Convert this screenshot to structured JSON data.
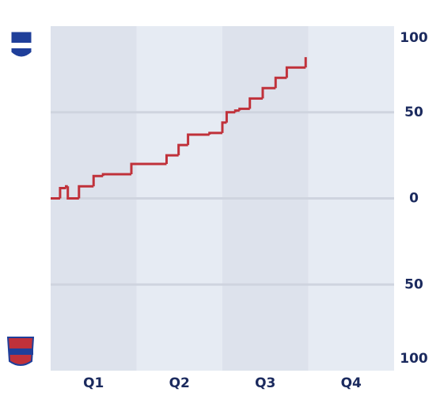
{
  "chart_data": {
    "type": "step",
    "quarters": [
      "Q1",
      "Q2",
      "Q3",
      "Q4"
    ],
    "xlim": [
      0,
      4
    ],
    "ylim": [
      -100,
      100
    ],
    "yticks": [
      {
        "value": 100,
        "label": "100"
      },
      50,
      0,
      {
        "value": -50,
        "label": "50"
      },
      {
        "value": -100,
        "label": "100"
      }
    ],
    "grid": true,
    "series": [
      {
        "color": "#c0313a",
        "x": [
          0,
          0.11,
          0.18,
          0.2,
          0.33,
          0.5,
          0.61,
          0.94,
          1.35,
          1.49,
          1.6,
          1.85,
          2.0,
          2.05,
          2.15,
          2.2,
          2.32,
          2.47,
          2.62,
          2.75,
          2.97
        ],
        "values": [
          0,
          6,
          7,
          0,
          7,
          13,
          14,
          20,
          25,
          31,
          37,
          38,
          44,
          50,
          51,
          52,
          58,
          64,
          70,
          76,
          82
        ]
      }
    ]
  }
}
